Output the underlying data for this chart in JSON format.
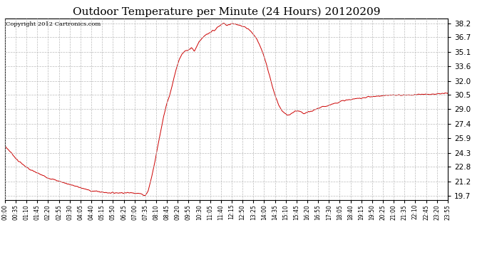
{
  "title": "Outdoor Temperature per Minute (24 Hours) 20120209",
  "copyright_text": "Copyright 2012 Cartronics.com",
  "line_color": "#cc0000",
  "background_color": "#ffffff",
  "grid_color": "#bbbbbb",
  "grid_style": "--",
  "title_fontsize": 11,
  "yticks": [
    19.7,
    21.2,
    22.8,
    24.3,
    25.9,
    27.4,
    29.0,
    30.5,
    32.0,
    33.6,
    35.1,
    36.7,
    38.2
  ],
  "ylim": [
    19.2,
    38.7
  ],
  "xtick_labels": [
    "00:00",
    "00:35",
    "01:10",
    "01:45",
    "02:20",
    "02:55",
    "03:30",
    "04:05",
    "04:40",
    "05:15",
    "05:50",
    "06:25",
    "07:00",
    "07:35",
    "08:10",
    "08:45",
    "09:20",
    "09:55",
    "10:30",
    "11:05",
    "11:40",
    "12:15",
    "12:50",
    "13:25",
    "14:00",
    "14:35",
    "15:10",
    "15:45",
    "16:20",
    "16:55",
    "17:30",
    "18:05",
    "18:40",
    "19:15",
    "19:50",
    "20:25",
    "21:00",
    "21:35",
    "22:10",
    "22:45",
    "23:20",
    "23:55"
  ],
  "num_points": 1440,
  "key_points": {
    "0": 25.0,
    "20": 24.3,
    "40": 23.5,
    "60": 23.0,
    "80": 22.5,
    "100": 22.2,
    "120": 21.9,
    "140": 21.6,
    "160": 21.4,
    "180": 21.2,
    "200": 21.0,
    "220": 20.8,
    "240": 20.6,
    "260": 20.4,
    "280": 20.2,
    "300": 20.15,
    "320": 20.05,
    "340": 20.0,
    "360": 20.0,
    "380": 20.0,
    "400": 20.0,
    "420": 20.0,
    "440": 19.9,
    "455": 19.7,
    "465": 20.2,
    "475": 21.5,
    "485": 23.0,
    "495": 24.8,
    "505": 26.5,
    "515": 28.2,
    "525": 29.5,
    "535": 30.5,
    "545": 31.8,
    "555": 33.2,
    "565": 34.2,
    "575": 34.9,
    "585": 35.2,
    "595": 35.3,
    "605": 35.6,
    "615": 35.2,
    "620": 35.5,
    "630": 36.2,
    "640": 36.6,
    "650": 36.9,
    "660": 37.1,
    "670": 37.3,
    "675": 37.5,
    "680": 37.4,
    "685": 37.6,
    "690": 37.8,
    "695": 37.9,
    "700": 38.0,
    "705": 38.1,
    "710": 38.2,
    "715": 38.1,
    "720": 38.0,
    "730": 38.1,
    "740": 38.2,
    "750": 38.1,
    "760": 38.0,
    "770": 37.9,
    "780": 37.8,
    "790": 37.6,
    "800": 37.3,
    "810": 36.9,
    "820": 36.4,
    "830": 35.7,
    "840": 34.8,
    "850": 33.7,
    "860": 32.5,
    "870": 31.3,
    "880": 30.2,
    "890": 29.4,
    "900": 28.8,
    "910": 28.5,
    "920": 28.3,
    "930": 28.5,
    "940": 28.7,
    "950": 28.8,
    "960": 28.7,
    "970": 28.5,
    "980": 28.6,
    "990": 28.7,
    "1000": 28.8,
    "1010": 29.0,
    "1020": 29.1,
    "1030": 29.2,
    "1040": 29.3,
    "1050": 29.4,
    "1060": 29.5,
    "1070": 29.6,
    "1080": 29.7,
    "1090": 29.8,
    "1100": 29.9,
    "1120": 30.0,
    "1140": 30.1,
    "1160": 30.2,
    "1180": 30.3,
    "1200": 30.35,
    "1220": 30.4,
    "1240": 30.45,
    "1260": 30.5,
    "1280": 30.5,
    "1300": 30.5,
    "1320": 30.5,
    "1340": 30.55,
    "1360": 30.6,
    "1380": 30.6,
    "1400": 30.6,
    "1420": 30.65,
    "1439": 30.7
  }
}
